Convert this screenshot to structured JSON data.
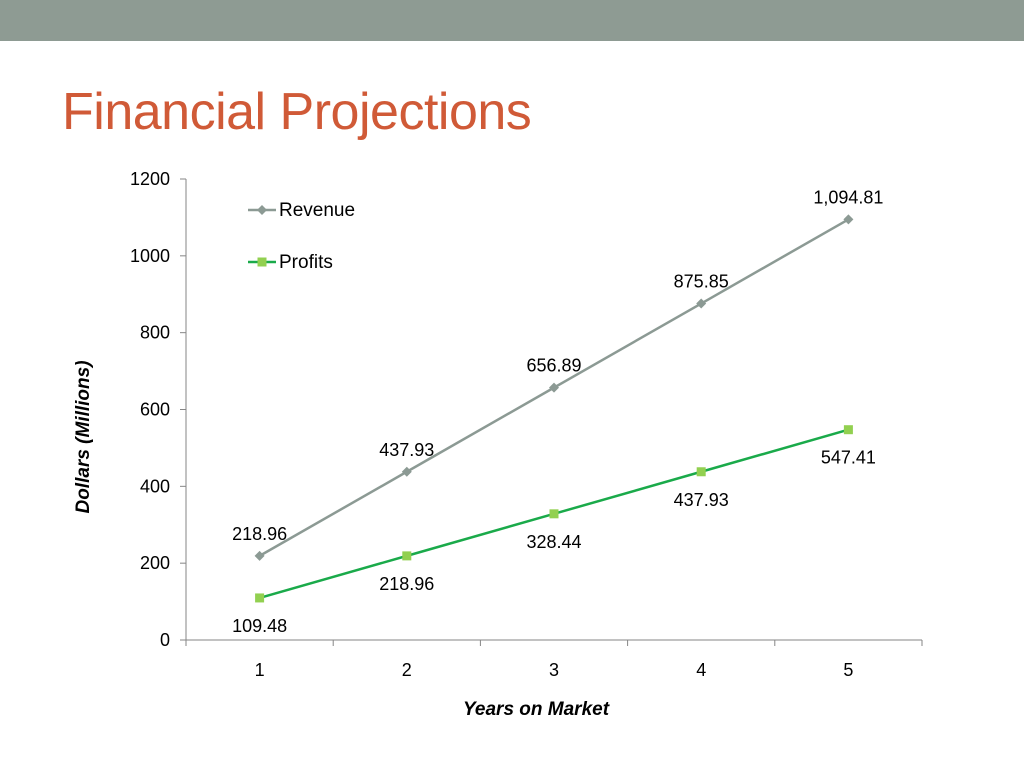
{
  "slide": {
    "title": "Financial Projections",
    "colors": {
      "top_bar": "#8e9b93",
      "title": "#d05a37"
    }
  },
  "chart_data": {
    "type": "line",
    "x": [
      1,
      2,
      3,
      4,
      5
    ],
    "xlabel": "Years on Market",
    "ylabel": "Dollars (Millions)",
    "ylim": [
      0,
      1200
    ],
    "yticks": [
      0,
      200,
      400,
      600,
      800,
      1000,
      1200
    ],
    "grid": false,
    "legend": "top-left",
    "series": [
      {
        "name": "Revenue",
        "values": [
          218.96,
          437.93,
          656.89,
          875.85,
          1094.81
        ],
        "labels": [
          "218.96",
          "437.93",
          "656.89",
          "875.85",
          "1,094.81"
        ],
        "label_position": "above",
        "color": "#8c9a94",
        "marker": "diamond"
      },
      {
        "name": "Profits",
        "values": [
          109.48,
          218.96,
          328.44,
          437.93,
          547.41
        ],
        "labels": [
          "109.48",
          "218.96",
          "328.44",
          "437.93",
          "547.41"
        ],
        "label_position": "below",
        "color": "#1aaa4a",
        "marker_color": "#92d050",
        "marker": "square"
      }
    ]
  }
}
